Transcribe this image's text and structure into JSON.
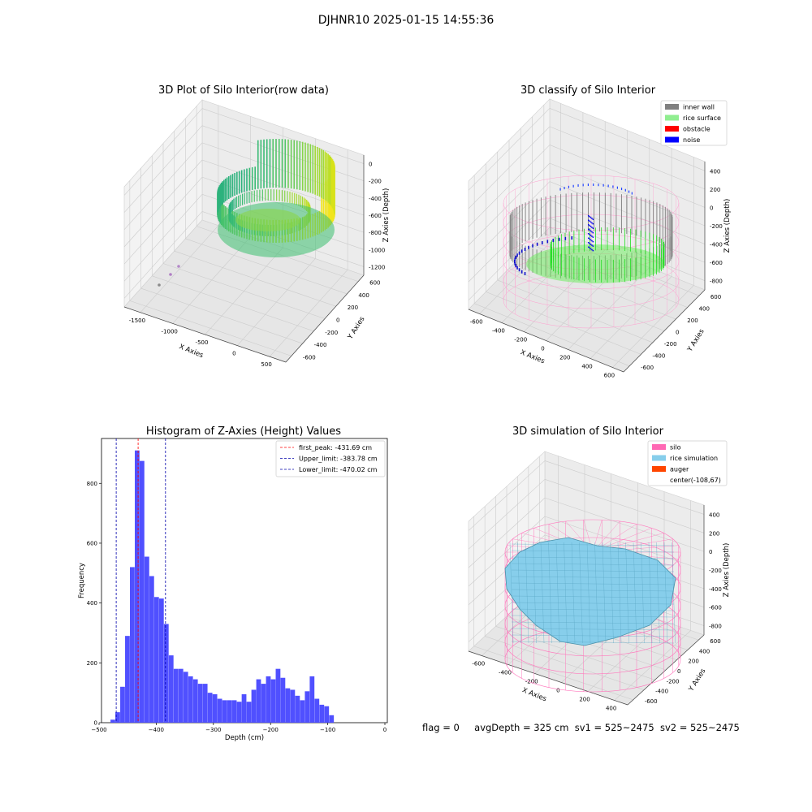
{
  "suptitle": "DJHNR10 2025-01-15 14:55:36",
  "footer": {
    "flag": "flag = 0",
    "avg_depth": "avgDepth = 325 cm",
    "sv1": "sv1 = 525~2475",
    "sv2": "sv2 = 525~2475"
  },
  "chart_data": [
    {
      "type": "scatter",
      "title": "3D Plot of Silo Interior(row data)",
      "xlabel": "X Axies",
      "ylabel": "Y Axies",
      "zlabel": "Z Axies (Depth)",
      "x_ticks": [
        "-1500",
        "-1000",
        "-500",
        "0",
        "500"
      ],
      "y_ticks": [
        "-600",
        "-400",
        "-200",
        "0",
        "200",
        "400",
        "600"
      ],
      "z_ticks": [
        "0",
        "-200",
        "-400",
        "-600",
        "-800",
        "-1000",
        "-1200"
      ],
      "colormap": "viridis"
    },
    {
      "type": "scatter",
      "title": "3D classify of Silo Interior",
      "xlabel": "X Axies",
      "ylabel": "Y Axies",
      "zlabel": "Z Axies (Depth)",
      "x_ticks": [
        "-600",
        "-400",
        "-200",
        "0",
        "200",
        "400",
        "600"
      ],
      "y_ticks": [
        "-600",
        "-400",
        "-200",
        "0",
        "200",
        "400",
        "600"
      ],
      "z_ticks": [
        "400",
        "200",
        "0",
        "-200",
        "-400",
        "-600",
        "-800"
      ],
      "legend": [
        {
          "label": "inner wall",
          "color": "#808080"
        },
        {
          "label": "rice surface",
          "color": "#90ee90"
        },
        {
          "label": "obstacle",
          "color": "#ff0000"
        },
        {
          "label": "noise",
          "color": "#0000ff"
        }
      ]
    },
    {
      "type": "bar",
      "title": "Histogram of Z-Axies (Height) Values",
      "xlabel": "Depth (cm)",
      "ylabel": "Frequency",
      "xlim": [
        -500,
        0
      ],
      "ylim": [
        0,
        950
      ],
      "x_ticks": [
        -500,
        -400,
        -300,
        -200,
        -100,
        0
      ],
      "y_ticks": [
        0,
        200,
        400,
        600,
        800
      ],
      "bin_start": -480,
      "bin_width": 8.5,
      "counts": [
        10,
        35,
        120,
        290,
        520,
        910,
        875,
        555,
        490,
        420,
        415,
        330,
        225,
        180,
        180,
        170,
        155,
        145,
        130,
        130,
        100,
        95,
        80,
        75,
        75,
        75,
        70,
        95,
        70,
        110,
        145,
        130,
        155,
        145,
        180,
        150,
        115,
        110,
        90,
        75,
        105,
        155,
        80,
        60,
        55,
        25
      ],
      "bar_color": "#5050ff",
      "lines": [
        {
          "label": "first_peak: -431.69 cm",
          "value": -431.69,
          "color": "#ff0000"
        },
        {
          "label": "Upper_limit: -383.78 cm",
          "value": -383.78,
          "color": "#0000aa"
        },
        {
          "label": "Lower_limit: -470.02 cm",
          "value": -470.02,
          "color": "#0000aa"
        }
      ]
    },
    {
      "type": "surface",
      "title": "3D simulation of Silo Interior",
      "xlabel": "X Axies",
      "ylabel": "Y Axies",
      "zlabel": "Z Axies (Depth)",
      "x_ticks": [
        "-600",
        "-400",
        "-200",
        "0",
        "200",
        "400"
      ],
      "y_ticks": [
        "-600",
        "-400",
        "-200",
        "0",
        "200",
        "400",
        "600"
      ],
      "z_ticks": [
        "400",
        "200",
        "0",
        "-200",
        "-400",
        "-600",
        "-800"
      ],
      "legend": [
        {
          "label": "silo",
          "color": "#ff69b4"
        },
        {
          "label": "rice simulation",
          "color": "#87ceeb"
        },
        {
          "label": "auger",
          "color": "#ff4500"
        },
        {
          "label": "center(-108,67)",
          "color": ""
        }
      ]
    }
  ]
}
